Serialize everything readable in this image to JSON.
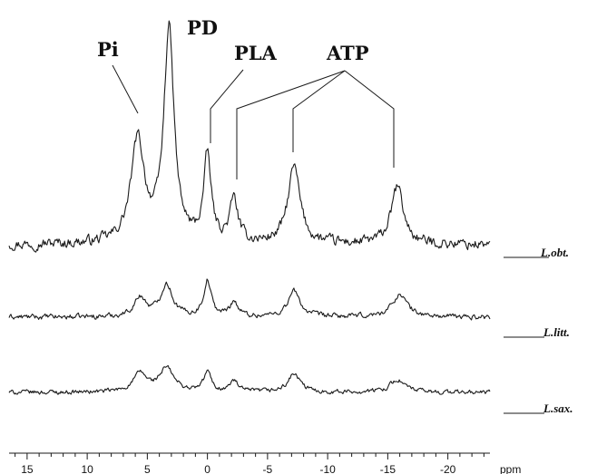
{
  "chart_data": {
    "type": "line",
    "title": "",
    "xlabel": "ppm",
    "ylabel": "",
    "x_reversed": true,
    "xlim": [
      16.5,
      -23.5
    ],
    "x_ticks": [
      15,
      10,
      5,
      0,
      -5,
      -10,
      -15,
      -20
    ],
    "x_tick_labels": [
      "15",
      "10",
      "5",
      "0",
      "-5",
      "-10",
      "-15",
      "-20"
    ],
    "grid": false,
    "peaks": [
      {
        "label": "Pi",
        "x": [
          5.8
        ]
      },
      {
        "label": "PD",
        "x": [
          3.2
        ]
      },
      {
        "label": "PLA",
        "x": [
          0.0
        ]
      },
      {
        "label": "ATP",
        "x": [
          -2.2,
          -7.2,
          -15.8
        ]
      }
    ],
    "series": [
      {
        "name": "L.obt.",
        "peaks": [
          {
            "x": 5.8,
            "height": 0.48,
            "width": 1.0
          },
          {
            "x": 3.2,
            "height": 1.0,
            "width": 0.75
          },
          {
            "x": 0.0,
            "height": 0.4,
            "width": 0.55
          },
          {
            "x": -2.2,
            "height": 0.2,
            "width": 0.6
          },
          {
            "x": -7.2,
            "height": 0.36,
            "width": 0.9
          },
          {
            "x": -15.8,
            "height": 0.27,
            "width": 0.9
          }
        ],
        "noise": 0.04
      },
      {
        "name": "L.litt.",
        "peaks": [
          {
            "x": 5.6,
            "height": 0.2,
            "width": 0.9
          },
          {
            "x": 3.4,
            "height": 0.34,
            "width": 0.9
          },
          {
            "x": 0.0,
            "height": 0.38,
            "width": 0.55
          },
          {
            "x": -2.2,
            "height": 0.16,
            "width": 0.6
          },
          {
            "x": -7.2,
            "height": 0.27,
            "width": 0.9
          },
          {
            "x": -16.0,
            "height": 0.24,
            "width": 1.1
          }
        ],
        "noise": 0.045
      },
      {
        "name": "L.sax.",
        "peaks": [
          {
            "x": 5.6,
            "height": 0.2,
            "width": 1.0
          },
          {
            "x": 3.4,
            "height": 0.26,
            "width": 1.1
          },
          {
            "x": 0.0,
            "height": 0.22,
            "width": 0.55
          },
          {
            "x": -2.2,
            "height": 0.12,
            "width": 0.6
          },
          {
            "x": -7.2,
            "height": 0.2,
            "width": 0.9
          },
          {
            "x": -15.8,
            "height": 0.14,
            "width": 1.1
          }
        ],
        "noise": 0.04
      }
    ]
  }
}
